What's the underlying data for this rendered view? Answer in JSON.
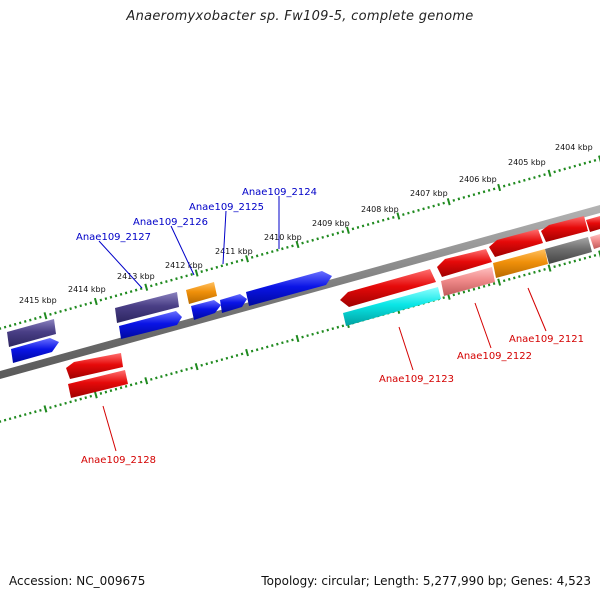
{
  "title": "Anaeromyxobacter sp. Fw109-5, complete genome",
  "footer": {
    "accession": "Accession: NC_009675",
    "topology": "Topology: circular; Length: 5,277,990 bp; Genes: 4,523"
  },
  "scale_labels": [
    "2404 kbp",
    "2405 kbp",
    "2406 kbp",
    "2407 kbp",
    "2408 kbp",
    "2409 kbp",
    "2410 kbp",
    "2411 kbp",
    "2412 kbp",
    "2413 kbp",
    "2414 kbp",
    "2415 kbp"
  ],
  "gene_labels_top": [
    "Anae109_2124",
    "Anae109_2125",
    "Anae109_2126",
    "Anae109_2127"
  ],
  "gene_labels_bottom": [
    "Anae109_2121",
    "Anae109_2122",
    "Anae109_2123",
    "Anae109_2128"
  ],
  "colors": {
    "backbone": "#8c8c8c",
    "tick": "#1f8a1f",
    "blue": "#0a14e6",
    "navy": "#4a3f86",
    "orange": "#f0900a",
    "red": "#e60a0a",
    "pink": "#f08a8a",
    "cyan": "#0ae6e6",
    "grey": "#6e6e6e",
    "label_blue": "#0000c8",
    "label_red": "#d40000"
  }
}
